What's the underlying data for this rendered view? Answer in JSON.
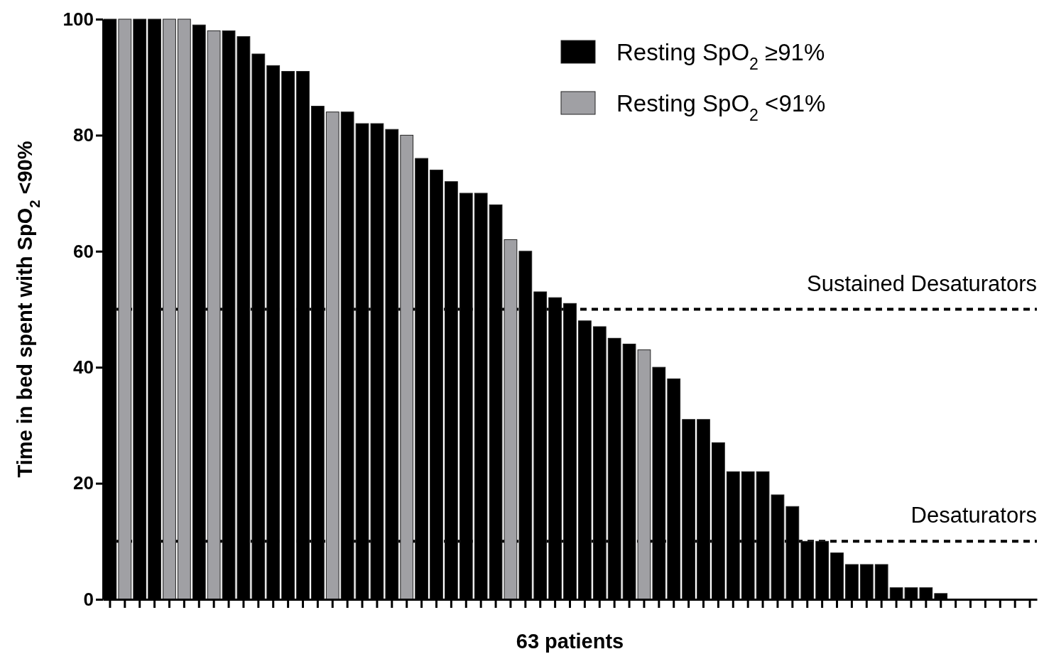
{
  "chart_data": {
    "type": "bar",
    "xlabel": "63 patients",
    "ylabel": "Time in bed spent with SpO$_{2}$ <90%",
    "categories": [
      null,
      null,
      null,
      null,
      null,
      null,
      null,
      null,
      null,
      null,
      null,
      null,
      null,
      null,
      null,
      null,
      null,
      null,
      null,
      null,
      null,
      null,
      null,
      null,
      null,
      null,
      null,
      null,
      null,
      null,
      null,
      null,
      null,
      null,
      null,
      null,
      null,
      null,
      null,
      null,
      null,
      null,
      null,
      null,
      null,
      null,
      null,
      null,
      null,
      null,
      null,
      null,
      null,
      null,
      null,
      null,
      null,
      null,
      null,
      null,
      null,
      null,
      null
    ],
    "stacked": true,
    "series": [
      {
        "name": "Resting SpO$_{2}$ ≥91%",
        "color": "#000000",
        "values": [
          100,
          null,
          100,
          100,
          null,
          null,
          99,
          null,
          98,
          97,
          94,
          92,
          91,
          91,
          85,
          null,
          84,
          82,
          82,
          81,
          null,
          76,
          74,
          72,
          70,
          70,
          68,
          null,
          60,
          53,
          52,
          51,
          48,
          47,
          45,
          44,
          null,
          40,
          38,
          31,
          31,
          27,
          22,
          22,
          22,
          18,
          16,
          10,
          10,
          8,
          6,
          6,
          6,
          2,
          2,
          2,
          1,
          0,
          0,
          0,
          0,
          0,
          0
        ]
      },
      {
        "name": "Resting SpO$_{2}$ <91%",
        "color": "#a0a0a4",
        "values": [
          null,
          100,
          null,
          null,
          100,
          100,
          null,
          98,
          null,
          null,
          null,
          null,
          null,
          null,
          null,
          84,
          null,
          null,
          null,
          null,
          80,
          null,
          null,
          null,
          null,
          null,
          null,
          62,
          null,
          null,
          null,
          null,
          null,
          null,
          null,
          null,
          43,
          null,
          null,
          null,
          null,
          null,
          null,
          null,
          null,
          null,
          null,
          null,
          null,
          null,
          null,
          null,
          null,
          null,
          null,
          null,
          null,
          null,
          null,
          null,
          null,
          null,
          null
        ]
      }
    ],
    "ylim": [
      0,
      100
    ],
    "yticks": [
      0,
      20,
      40,
      60,
      80,
      100
    ],
    "tick_labels": "y",
    "grid": false,
    "legend": "top right",
    "ref_lines": [
      {
        "axis": "y",
        "value": 50,
        "label": "Sustained Desaturators",
        "line_style": "dashed"
      },
      {
        "axis": "y",
        "value": 10,
        "label": "Desaturators",
        "line_style": "dashed"
      }
    ]
  }
}
